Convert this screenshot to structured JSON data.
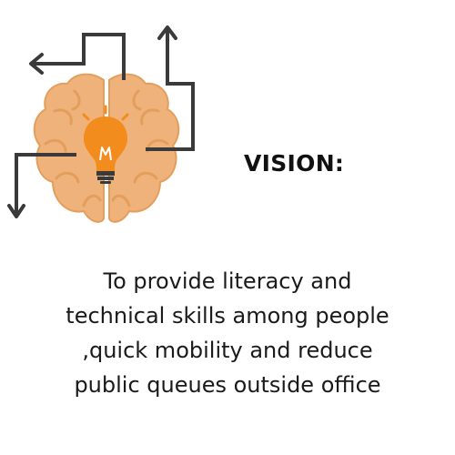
{
  "heading": "VISION:",
  "statement_lines": [
    "To provide literacy and",
    "technical skills among people",
    ",quick mobility and reduce",
    "public queues outside office"
  ],
  "icons": {
    "illustration": "brain-lightbulb-icon",
    "arrows": [
      "arrow-left-icon",
      "arrow-up-icon",
      "arrow-down-icon"
    ]
  },
  "colors": {
    "brain": "#efb27a",
    "brain_outline": "#e39e5c",
    "bulb": "#f28c1d",
    "arrows": "#3a3a3a",
    "text": "#1a1a1a"
  }
}
